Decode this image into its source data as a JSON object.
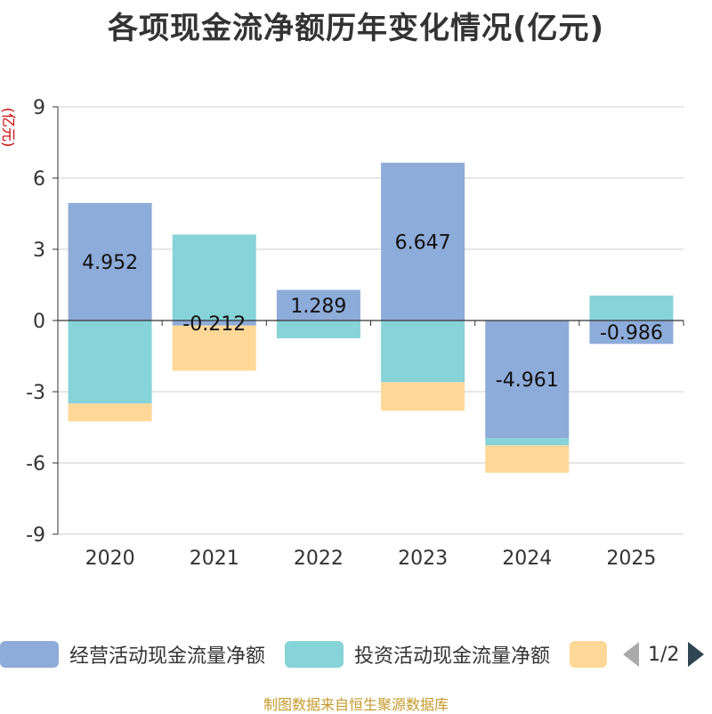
{
  "chart_data": {
    "type": "bar",
    "stacked": true,
    "title": "各项现金流净额历年变化情况(亿元)",
    "ylabel": "(亿元)",
    "xlabel": "",
    "categories": [
      "2020",
      "2021",
      "2022",
      "2023",
      "2024",
      "2025"
    ],
    "ylim": [
      -9,
      9
    ],
    "yticks": [
      9,
      6,
      3,
      0,
      -3,
      -6,
      -9
    ],
    "grid": true,
    "series": [
      {
        "name": "经营活动现金流量净额",
        "color": "#8eacd9",
        "values": [
          4.952,
          -0.212,
          1.289,
          6.647,
          -4.961,
          -0.986
        ],
        "labels": [
          "4.952",
          "-0.212",
          "1.289",
          "6.647",
          "-4.961",
          "-0.986"
        ]
      },
      {
        "name": "投资活动现金流量净额",
        "color": "#86d3d8",
        "values": [
          -3.5,
          3.62,
          -0.75,
          -2.6,
          -0.3,
          1.05
        ]
      },
      {
        "name": "",
        "color": "#ffd897",
        "values": [
          -0.75,
          -1.9,
          0,
          -1.2,
          -1.15,
          0
        ]
      }
    ]
  },
  "legend": {
    "items": [
      {
        "label": "经营活动现金流量净额",
        "color": "#8eacd9"
      },
      {
        "label": "投资活动现金流量净额",
        "color": "#86d3d8"
      },
      {
        "label": "",
        "color": "#ffd897"
      }
    ],
    "page": "1/2"
  },
  "source": "制图数据来自恒生聚源数据库"
}
